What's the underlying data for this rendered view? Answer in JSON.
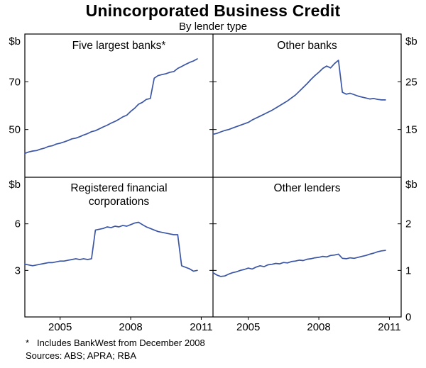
{
  "chart_data": {
    "type": "line",
    "title": "Unincorporated Business Credit",
    "subtitle": "By lender type",
    "unit_label": "$b",
    "line_color": "#3B55A5",
    "footnote_marker": "*",
    "footnote_text": "Includes BankWest from December 2008",
    "sources": "Sources: ABS; APRA; RBA",
    "x_axis": {
      "min": 2003.5,
      "max": 2011.5,
      "start": 2003.5,
      "step": 0.1666667,
      "ticks": [
        2005,
        2008,
        2011
      ]
    },
    "panels": [
      {
        "name": "five-largest-banks",
        "title": "Five largest banks*",
        "position": "top-left",
        "axis_side": "left",
        "ylim": [
          30,
          90
        ],
        "yticks": [
          50,
          70
        ],
        "values": [
          40.0,
          40.6,
          41.0,
          41.2,
          41.8,
          42.2,
          42.9,
          43.2,
          43.9,
          44.3,
          44.8,
          45.4,
          46.1,
          46.4,
          47.0,
          47.7,
          48.3,
          49.1,
          49.5,
          50.3,
          51.1,
          51.8,
          52.7,
          53.4,
          54.3,
          55.3,
          56.0,
          57.6,
          58.9,
          60.6,
          61.4,
          62.6,
          63.0,
          71.5,
          72.6,
          73.0,
          73.4,
          74.0,
          74.3,
          75.6,
          76.4,
          77.3,
          78.1,
          78.7,
          79.6
        ]
      },
      {
        "name": "other-banks",
        "title": "Other banks",
        "position": "top-right",
        "axis_side": "right",
        "ylim": [
          5,
          35
        ],
        "yticks": [
          15,
          25
        ],
        "values": [
          14.0,
          14.2,
          14.5,
          14.8,
          15.0,
          15.3,
          15.6,
          15.9,
          16.2,
          16.5,
          17.0,
          17.4,
          17.8,
          18.2,
          18.6,
          19.0,
          19.5,
          20.0,
          20.5,
          21.0,
          21.6,
          22.2,
          23.0,
          23.8,
          24.6,
          25.5,
          26.3,
          27.0,
          27.8,
          28.3,
          27.9,
          28.8,
          29.5,
          22.8,
          22.4,
          22.6,
          22.3,
          22.0,
          21.8,
          21.6,
          21.4,
          21.5,
          21.3,
          21.2,
          21.2
        ]
      },
      {
        "name": "registered-financial-corporations",
        "title": "Registered financial corporations",
        "position": "bottom-left",
        "axis_side": "left",
        "ylim": [
          0,
          9
        ],
        "yticks": [
          3,
          6
        ],
        "values": [
          3.4,
          3.35,
          3.3,
          3.35,
          3.4,
          3.45,
          3.5,
          3.5,
          3.55,
          3.6,
          3.6,
          3.65,
          3.7,
          3.75,
          3.7,
          3.75,
          3.7,
          3.75,
          5.6,
          5.65,
          5.7,
          5.8,
          5.75,
          5.85,
          5.8,
          5.9,
          5.85,
          5.95,
          6.05,
          6.1,
          5.95,
          5.8,
          5.7,
          5.6,
          5.5,
          5.45,
          5.4,
          5.35,
          5.3,
          5.3,
          3.3,
          3.2,
          3.1,
          2.95,
          3.0
        ]
      },
      {
        "name": "other-lenders",
        "title": "Other lenders",
        "position": "bottom-right",
        "axis_side": "right",
        "ylim": [
          0,
          3
        ],
        "yticks": [
          0,
          1,
          2
        ],
        "values": [
          0.95,
          0.9,
          0.87,
          0.88,
          0.92,
          0.95,
          0.97,
          1.0,
          1.02,
          1.05,
          1.03,
          1.07,
          1.1,
          1.08,
          1.12,
          1.13,
          1.15,
          1.14,
          1.17,
          1.16,
          1.19,
          1.2,
          1.22,
          1.21,
          1.24,
          1.25,
          1.27,
          1.28,
          1.3,
          1.29,
          1.32,
          1.33,
          1.35,
          1.26,
          1.25,
          1.27,
          1.26,
          1.28,
          1.3,
          1.32,
          1.35,
          1.37,
          1.4,
          1.42,
          1.43
        ]
      }
    ]
  }
}
